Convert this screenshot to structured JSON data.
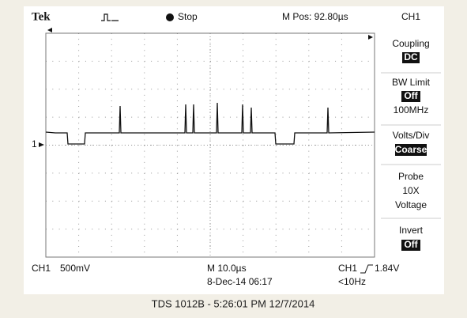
{
  "header": {
    "brand": "Tek",
    "status": "Stop",
    "position": "M Pos: 92.80µs"
  },
  "menu": {
    "title": "CH1",
    "items": [
      {
        "label": "Coupling",
        "value": "DC"
      },
      {
        "label": "BW Limit",
        "value": "Off",
        "note": "100MHz"
      },
      {
        "label": "Volts/Div",
        "value": "Coarse"
      },
      {
        "label": "Probe",
        "value": "10X",
        "note": "Voltage"
      },
      {
        "label": "Invert",
        "value": "Off"
      }
    ]
  },
  "channel_marker": "1",
  "footer": {
    "channel": "CH1",
    "scale": "500mV",
    "timebase": "M 10.0µs",
    "date": "8-Dec-14 06:17",
    "trigger_channel": "CH1",
    "trigger_level": "1.84V",
    "frequency": "<10Hz"
  },
  "caption": "TDS 1012B - 5:26:01 PM 12/7/2014"
}
